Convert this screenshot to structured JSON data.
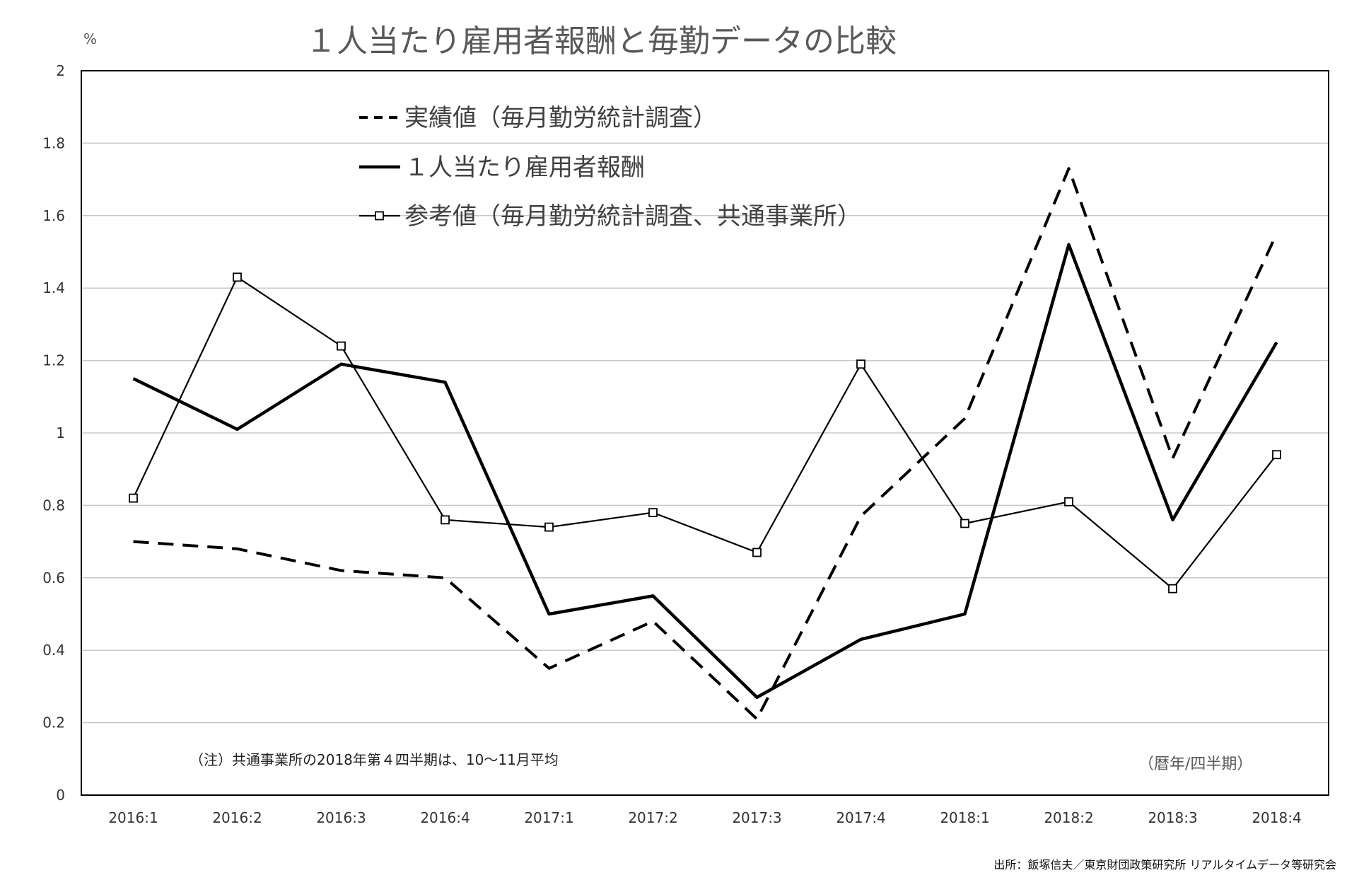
{
  "unit_label": "%",
  "note": "（注）共通事業所の2018年第４四半期は、10～11月平均",
  "period_label": "（暦年/四半期）",
  "source": "出所：飯塚信夫／東京財団政策研究所 リアルタイムデータ等研究会",
  "chart_data": {
    "type": "line",
    "title": "１人当たり雇用者報酬と毎勤データの比較",
    "xlabel": "",
    "ylabel": "%",
    "ylim": [
      0,
      2
    ],
    "yticks": [
      0,
      0.2,
      0.4,
      0.6,
      0.8,
      1,
      1.2,
      1.4,
      1.6,
      1.8,
      2
    ],
    "ytick_labels": [
      "0",
      "0.2",
      "0.4",
      "0.6",
      "0.8",
      "1",
      "1.2",
      "1.4",
      "1.6",
      "1.8",
      "2"
    ],
    "grid": true,
    "legend_position": "top-center",
    "categories": [
      "2016:1",
      "2016:2",
      "2016:3",
      "2016:4",
      "2017:1",
      "2017:2",
      "2017:3",
      "2017:4",
      "2018:1",
      "2018:2",
      "2018:3",
      "2018:4"
    ],
    "series": [
      {
        "name": "実績値（毎月勤労統計調査）",
        "style": "dashed",
        "color": "#000000",
        "values": [
          0.7,
          0.68,
          0.62,
          0.6,
          0.35,
          0.48,
          0.21,
          0.77,
          1.04,
          1.73,
          0.93,
          1.55
        ]
      },
      {
        "name": "１人当たり雇用者報酬",
        "style": "solid-thick",
        "color": "#000000",
        "values": [
          1.15,
          1.01,
          1.19,
          1.14,
          0.5,
          0.55,
          0.27,
          0.43,
          0.5,
          1.52,
          0.76,
          1.25
        ]
      },
      {
        "name": "参考値（毎月勤労統計調査、共通事業所）",
        "style": "solid-thin-square",
        "color": "#000000",
        "values": [
          0.82,
          1.43,
          1.24,
          0.76,
          0.74,
          0.78,
          0.67,
          1.19,
          0.75,
          0.81,
          0.57,
          0.94
        ]
      }
    ]
  }
}
